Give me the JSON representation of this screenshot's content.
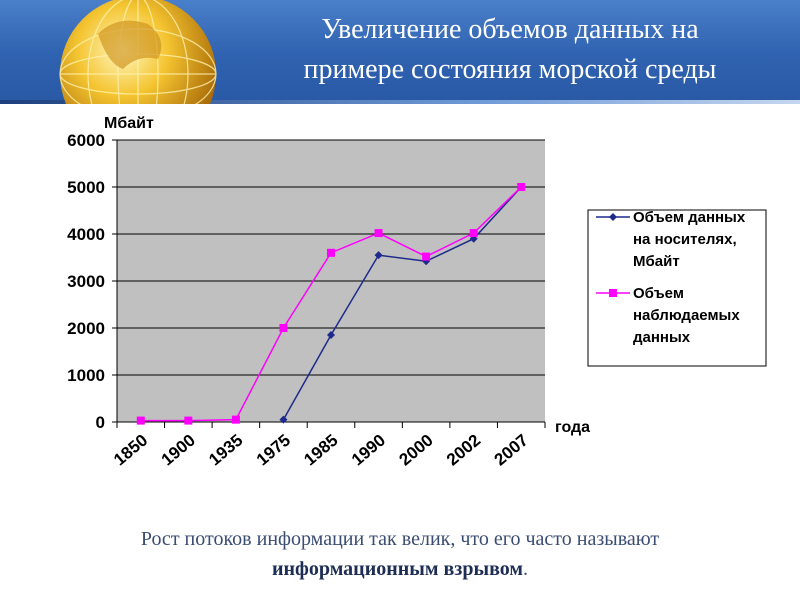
{
  "header": {
    "title_line1": "Увеличение объемов данных на",
    "title_line2": "примере состояния морской среды"
  },
  "caption": {
    "text_line1": "Рост потоков информации так велик, что его часто называют",
    "text_em": "информационным взрывом",
    "text_end": "."
  },
  "icons": {
    "logo": "globe-icon"
  },
  "colors": {
    "header_bg": "#2f62b0",
    "plot_bg": "#c0c0c0",
    "series_media": "#1e2a8c",
    "series_observed": "#ff00ff"
  },
  "chart_data": {
    "type": "line",
    "ylabel": "Мбайт",
    "xlabel": "года",
    "ylim": [
      0,
      6000
    ],
    "yticks": [
      0,
      1000,
      2000,
      3000,
      4000,
      5000,
      6000
    ],
    "categories": [
      "1850",
      "1900",
      "1935",
      "1975",
      "1985",
      "1990",
      "2000",
      "2002",
      "2007"
    ],
    "grid": true,
    "legend_position": "right",
    "series": [
      {
        "name": "Объем данных на носителях, Мбайт",
        "name_lines": [
          "Объем данных",
          "на носителях,",
          "Мбайт"
        ],
        "marker": "diamond",
        "values": [
          null,
          null,
          null,
          50,
          1850,
          3550,
          3420,
          3900,
          5000
        ]
      },
      {
        "name": "Объем наблюдаемых данных",
        "name_lines": [
          "Объем",
          "наблюдаемых",
          "данных"
        ],
        "marker": "square",
        "values": [
          30,
          30,
          50,
          2000,
          3600,
          4020,
          3520,
          4020,
          5000
        ]
      }
    ]
  }
}
